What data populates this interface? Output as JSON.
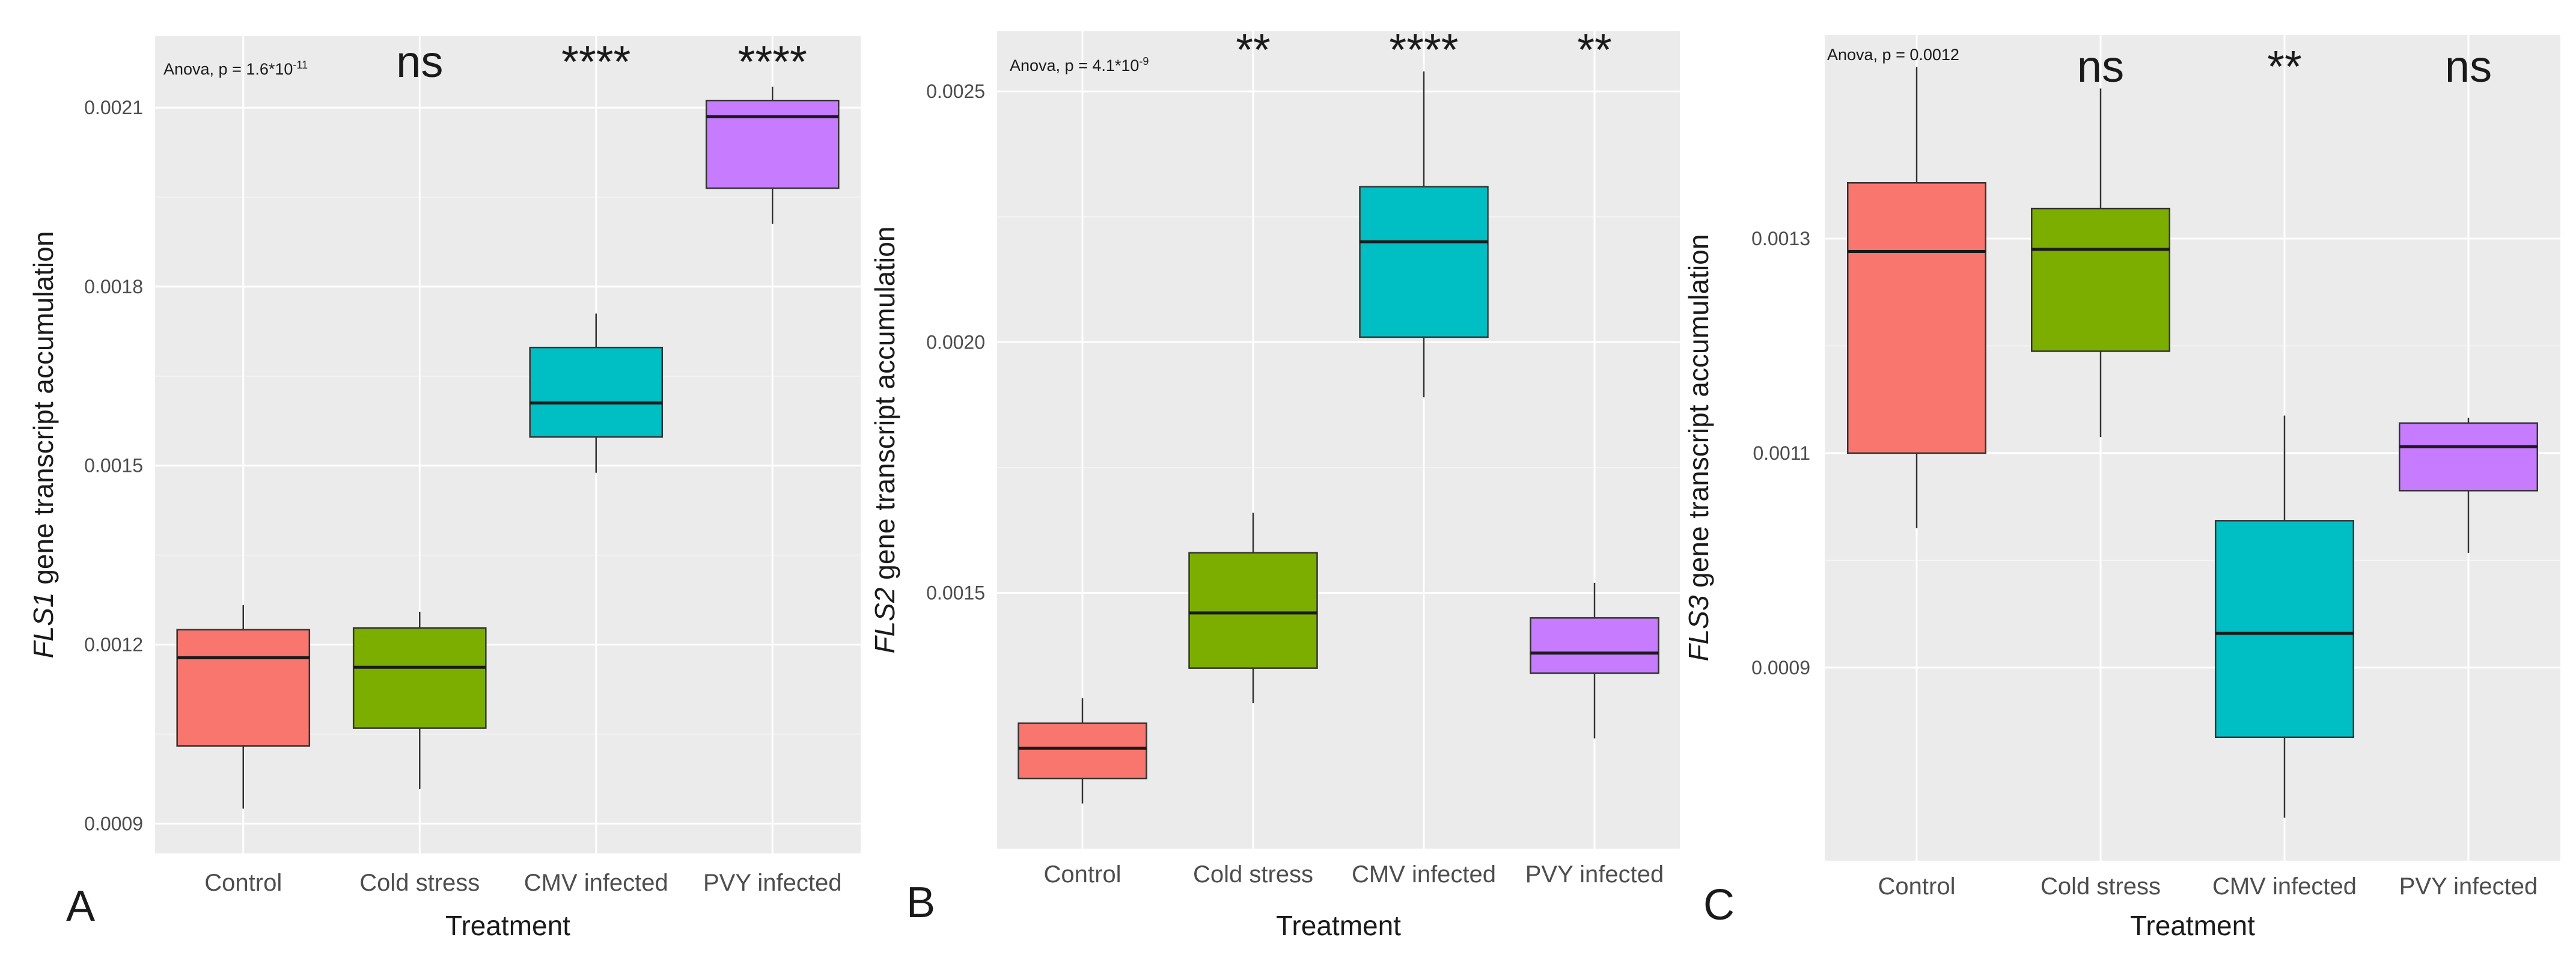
{
  "chart_data": [
    {
      "panel_letter": "A",
      "type": "box",
      "ylabel_gene": "FLS1",
      "ylabel_rest": " gene transcript accumulation",
      "xlabel": "Treatment",
      "anova_text": "Anova, p = 1.6*10",
      "anova_exp": "-11",
      "ylim": [
        0.00085,
        0.00222
      ],
      "yticks": [
        0.0009,
        0.0012,
        0.0015,
        0.0018,
        0.0021
      ],
      "ytick_labels": [
        "0.0009",
        "0.0012",
        "0.0015",
        "0.0018",
        "0.0021"
      ],
      "categories": [
        "Control",
        "Cold stress",
        "CMV infected",
        "PVY infected"
      ],
      "colors": [
        "#f8766d",
        "#7cae00",
        "#00bfc4",
        "#c77cff"
      ],
      "boxes": [
        {
          "min": 0.000925,
          "q1": 0.00103,
          "median": 0.001178,
          "q3": 0.001225,
          "max": 0.001266
        },
        {
          "min": 0.000958,
          "q1": 0.00106,
          "median": 0.001162,
          "q3": 0.001228,
          "max": 0.001255
        },
        {
          "min": 0.001488,
          "q1": 0.001548,
          "median": 0.001605,
          "q3": 0.001698,
          "max": 0.001755
        },
        {
          "min": 0.001905,
          "q1": 0.001965,
          "median": 0.002085,
          "q3": 0.002112,
          "max": 0.002135
        }
      ],
      "significance": [
        "",
        "ns",
        "****",
        "****"
      ]
    },
    {
      "panel_letter": "B",
      "type": "box",
      "ylabel_gene": "FLS2",
      "ylabel_rest": " gene transcript accumulation",
      "xlabel": "Treatment",
      "anova_text": "Anova, p = 4.1*10",
      "anova_exp": "-9",
      "ylim": [
        0.00099,
        0.00262
      ],
      "yticks": [
        0.0015,
        0.002,
        0.0025
      ],
      "ytick_labels": [
        "0.0015",
        "0.0020",
        "0.0025"
      ],
      "categories": [
        "Control",
        "Cold stress",
        "CMV infected",
        "PVY infected"
      ],
      "colors": [
        "#f8766d",
        "#7cae00",
        "#00bfc4",
        "#c77cff"
      ],
      "boxes": [
        {
          "min": 0.00108,
          "q1": 0.00113,
          "median": 0.00119,
          "q3": 0.00124,
          "max": 0.00129
        },
        {
          "min": 0.00128,
          "q1": 0.00135,
          "median": 0.00146,
          "q3": 0.00158,
          "max": 0.00166
        },
        {
          "min": 0.00189,
          "q1": 0.00201,
          "median": 0.0022,
          "q3": 0.00231,
          "max": 0.00254
        },
        {
          "min": 0.00121,
          "q1": 0.00134,
          "median": 0.00138,
          "q3": 0.00145,
          "max": 0.00152
        }
      ],
      "significance": [
        "",
        "**",
        "****",
        "**"
      ]
    },
    {
      "panel_letter": "C",
      "type": "box",
      "ylabel_gene": "FLS3",
      "ylabel_rest": " gene transcript accumulation",
      "xlabel": "Treatment",
      "anova_text": "Anova, p = 0.0012",
      "anova_exp": "",
      "ylim": [
        0.00072,
        0.00149
      ],
      "yticks": [
        0.0009,
        0.0011,
        0.0013
      ],
      "ytick_labels": [
        "0.0009",
        "0.0011",
        "0.0013"
      ],
      "categories": [
        "Control",
        "Cold stress",
        "CMV infected",
        "PVY infected"
      ],
      "colors": [
        "#f8766d",
        "#7cae00",
        "#00bfc4",
        "#c77cff"
      ],
      "boxes": [
        {
          "min": 0.00103,
          "q1": 0.0011,
          "median": 0.001288,
          "q3": 0.001352,
          "max": 0.00146
        },
        {
          "min": 0.001115,
          "q1": 0.001195,
          "median": 0.00129,
          "q3": 0.001328,
          "max": 0.00144
        },
        {
          "min": 0.00076,
          "q1": 0.000835,
          "median": 0.000932,
          "q3": 0.001037,
          "max": 0.001135
        },
        {
          "min": 0.001007,
          "q1": 0.001065,
          "median": 0.001106,
          "q3": 0.001128,
          "max": 0.001133
        }
      ],
      "significance": [
        "",
        "ns",
        "**",
        "ns"
      ]
    }
  ]
}
